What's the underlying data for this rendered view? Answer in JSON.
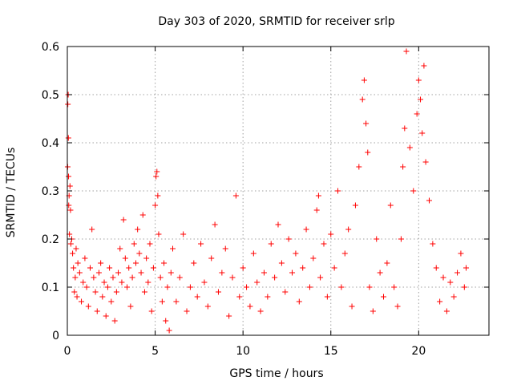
{
  "chart_data": {
    "type": "scatter",
    "title": "Day 303 of 2020, SRMTID for receiver srlp",
    "xlabel": "GPS time / hours",
    "ylabel": "SRMTID / TECUs",
    "xlim": [
      0,
      24
    ],
    "ylim": [
      0,
      0.6
    ],
    "xticks": [
      0,
      5,
      10,
      15,
      20
    ],
    "xtick_labels": [
      "0",
      "5",
      "10",
      "15",
      "20"
    ],
    "yticks": [
      0,
      0.1,
      0.2,
      0.3,
      0.4,
      0.5,
      0.6
    ],
    "ytick_labels": [
      "0",
      "0.1",
      "0.2",
      "0.3",
      "0.4",
      "0.5",
      "0.6"
    ],
    "grid": true,
    "series": [
      {
        "name": "SRMTID",
        "marker": "+",
        "color": "#ff0000",
        "points": [
          [
            0.02,
            0.35
          ],
          [
            0.03,
            0.48
          ],
          [
            0.05,
            0.5
          ],
          [
            0.06,
            0.41
          ],
          [
            0.07,
            0.33
          ],
          [
            0.08,
            0.27
          ],
          [
            0.1,
            0.29
          ],
          [
            0.12,
            0.21
          ],
          [
            0.15,
            0.31
          ],
          [
            0.18,
            0.26
          ],
          [
            0.2,
            0.19
          ],
          [
            0.25,
            0.2
          ],
          [
            0.3,
            0.17
          ],
          [
            0.35,
            0.14
          ],
          [
            0.4,
            0.09
          ],
          [
            0.45,
            0.12
          ],
          [
            0.5,
            0.18
          ],
          [
            0.55,
            0.08
          ],
          [
            0.6,
            0.15
          ],
          [
            0.7,
            0.13
          ],
          [
            0.8,
            0.07
          ],
          [
            0.9,
            0.11
          ],
          [
            1.0,
            0.16
          ],
          [
            1.1,
            0.1
          ],
          [
            1.2,
            0.06
          ],
          [
            1.3,
            0.14
          ],
          [
            1.4,
            0.22
          ],
          [
            1.5,
            0.12
          ],
          [
            1.6,
            0.09
          ],
          [
            1.7,
            0.05
          ],
          [
            1.8,
            0.13
          ],
          [
            1.9,
            0.15
          ],
          [
            2.0,
            0.08
          ],
          [
            2.1,
            0.11
          ],
          [
            2.2,
            0.04
          ],
          [
            2.3,
            0.1
          ],
          [
            2.4,
            0.14
          ],
          [
            2.5,
            0.07
          ],
          [
            2.6,
            0.12
          ],
          [
            2.7,
            0.03
          ],
          [
            2.8,
            0.09
          ],
          [
            2.9,
            0.13
          ],
          [
            3.0,
            0.18
          ],
          [
            3.1,
            0.11
          ],
          [
            3.2,
            0.24
          ],
          [
            3.3,
            0.16
          ],
          [
            3.4,
            0.1
          ],
          [
            3.5,
            0.14
          ],
          [
            3.6,
            0.06
          ],
          [
            3.7,
            0.12
          ],
          [
            3.8,
            0.19
          ],
          [
            3.9,
            0.15
          ],
          [
            4.0,
            0.22
          ],
          [
            4.1,
            0.17
          ],
          [
            4.2,
            0.13
          ],
          [
            4.3,
            0.25
          ],
          [
            4.4,
            0.09
          ],
          [
            4.5,
            0.16
          ],
          [
            4.6,
            0.11
          ],
          [
            4.7,
            0.19
          ],
          [
            4.8,
            0.05
          ],
          [
            4.9,
            0.14
          ],
          [
            5.0,
            0.27
          ],
          [
            5.05,
            0.33
          ],
          [
            5.1,
            0.34
          ],
          [
            5.15,
            0.29
          ],
          [
            5.2,
            0.21
          ],
          [
            5.3,
            0.12
          ],
          [
            5.4,
            0.07
          ],
          [
            5.5,
            0.15
          ],
          [
            5.6,
            0.03
          ],
          [
            5.7,
            0.1
          ],
          [
            5.8,
            0.01
          ],
          [
            5.9,
            0.13
          ],
          [
            6.0,
            0.18
          ],
          [
            6.2,
            0.07
          ],
          [
            6.4,
            0.12
          ],
          [
            6.6,
            0.21
          ],
          [
            6.8,
            0.05
          ],
          [
            7.0,
            0.1
          ],
          [
            7.2,
            0.15
          ],
          [
            7.4,
            0.08
          ],
          [
            7.6,
            0.19
          ],
          [
            7.8,
            0.11
          ],
          [
            8.0,
            0.06
          ],
          [
            8.2,
            0.16
          ],
          [
            8.4,
            0.23
          ],
          [
            8.6,
            0.09
          ],
          [
            8.8,
            0.13
          ],
          [
            9.0,
            0.18
          ],
          [
            9.2,
            0.04
          ],
          [
            9.4,
            0.12
          ],
          [
            9.6,
            0.29
          ],
          [
            9.8,
            0.08
          ],
          [
            10.0,
            0.14
          ],
          [
            10.2,
            0.1
          ],
          [
            10.4,
            0.06
          ],
          [
            10.6,
            0.17
          ],
          [
            10.8,
            0.11
          ],
          [
            11.0,
            0.05
          ],
          [
            11.2,
            0.13
          ],
          [
            11.4,
            0.08
          ],
          [
            11.6,
            0.19
          ],
          [
            11.8,
            0.12
          ],
          [
            12.0,
            0.23
          ],
          [
            12.2,
            0.15
          ],
          [
            12.4,
            0.09
          ],
          [
            12.6,
            0.2
          ],
          [
            12.8,
            0.13
          ],
          [
            13.0,
            0.17
          ],
          [
            13.2,
            0.07
          ],
          [
            13.4,
            0.14
          ],
          [
            13.6,
            0.22
          ],
          [
            13.8,
            0.1
          ],
          [
            14.0,
            0.16
          ],
          [
            14.2,
            0.26
          ],
          [
            14.3,
            0.29
          ],
          [
            14.4,
            0.12
          ],
          [
            14.6,
            0.19
          ],
          [
            14.8,
            0.08
          ],
          [
            15.0,
            0.21
          ],
          [
            15.2,
            0.14
          ],
          [
            15.4,
            0.3
          ],
          [
            15.6,
            0.1
          ],
          [
            15.8,
            0.17
          ],
          [
            16.0,
            0.22
          ],
          [
            16.2,
            0.06
          ],
          [
            16.4,
            0.27
          ],
          [
            16.6,
            0.35
          ],
          [
            16.8,
            0.49
          ],
          [
            16.9,
            0.53
          ],
          [
            17.0,
            0.44
          ],
          [
            17.1,
            0.38
          ],
          [
            17.2,
            0.1
          ],
          [
            17.4,
            0.05
          ],
          [
            17.6,
            0.2
          ],
          [
            17.8,
            0.13
          ],
          [
            18.0,
            0.08
          ],
          [
            18.2,
            0.15
          ],
          [
            18.4,
            0.27
          ],
          [
            18.6,
            0.1
          ],
          [
            18.8,
            0.06
          ],
          [
            19.0,
            0.2
          ],
          [
            19.1,
            0.35
          ],
          [
            19.2,
            0.43
          ],
          [
            19.3,
            0.59
          ],
          [
            19.5,
            0.39
          ],
          [
            19.7,
            0.3
          ],
          [
            19.9,
            0.46
          ],
          [
            20.0,
            0.53
          ],
          [
            20.1,
            0.49
          ],
          [
            20.2,
            0.42
          ],
          [
            20.3,
            0.56
          ],
          [
            20.4,
            0.36
          ],
          [
            20.6,
            0.28
          ],
          [
            20.8,
            0.19
          ],
          [
            21.0,
            0.14
          ],
          [
            21.2,
            0.07
          ],
          [
            21.4,
            0.12
          ],
          [
            21.6,
            0.05
          ],
          [
            21.8,
            0.11
          ],
          [
            22.0,
            0.08
          ],
          [
            22.2,
            0.13
          ],
          [
            22.4,
            0.17
          ],
          [
            22.6,
            0.1
          ],
          [
            22.7,
            0.14
          ]
        ]
      }
    ]
  }
}
